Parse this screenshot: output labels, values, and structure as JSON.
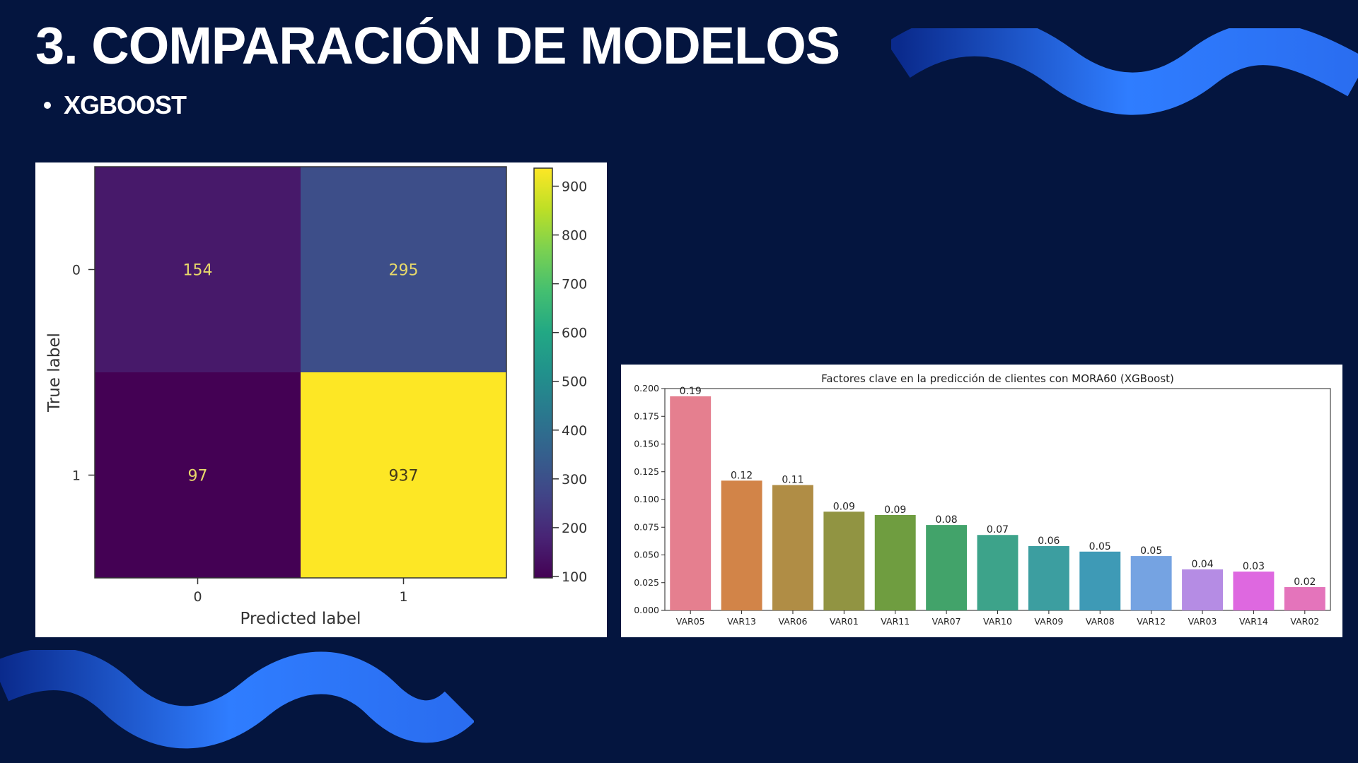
{
  "slide": {
    "title": "3. COMPARACIÓN DE MODELOS",
    "bullet": "XGBOOST"
  },
  "colors": {
    "background": "#04153f",
    "wave_light": "#2f7dff",
    "wave_dark": "#0a2a8c"
  },
  "chart_data": [
    {
      "type": "heatmap",
      "title": "",
      "xlabel": "Predicted label",
      "ylabel": "True label",
      "x_categories": [
        "0",
        "1"
      ],
      "y_categories": [
        "0",
        "1"
      ],
      "values": [
        [
          154,
          295
        ],
        [
          97,
          937
        ]
      ],
      "colormap": "viridis",
      "colorbar": {
        "range": [
          97,
          937
        ],
        "ticks": [
          100,
          200,
          300,
          400,
          500,
          600,
          700,
          800,
          900
        ]
      }
    },
    {
      "type": "bar",
      "title": "Factores clave en la predicción de clientes con MORA60 (XGBoost)",
      "xlabel": "",
      "ylabel": "",
      "categories": [
        "VAR05",
        "VAR13",
        "VAR06",
        "VAR01",
        "VAR11",
        "VAR07",
        "VAR10",
        "VAR09",
        "VAR08",
        "VAR12",
        "VAR03",
        "VAR14",
        "VAR02"
      ],
      "values": [
        0.193,
        0.117,
        0.113,
        0.089,
        0.086,
        0.077,
        0.068,
        0.058,
        0.053,
        0.049,
        0.037,
        0.035,
        0.021
      ],
      "data_labels": [
        "0.19",
        "0.12",
        "0.11",
        "0.09",
        "0.09",
        "0.08",
        "0.07",
        "0.06",
        "0.05",
        "0.05",
        "0.04",
        "0.03",
        "0.02"
      ],
      "ylim": [
        0,
        0.2
      ],
      "yticks": [
        "0.000",
        "0.025",
        "0.050",
        "0.075",
        "0.100",
        "0.125",
        "0.150",
        "0.175",
        "0.200"
      ],
      "bar_colors": [
        "#e57f8f",
        "#d28448",
        "#b08d45",
        "#919442",
        "#6f9d40",
        "#42a36a",
        "#3da38a",
        "#3c9ea0",
        "#3e9ab6",
        "#75a3e2",
        "#b58ce4",
        "#de68e0",
        "#e474bb"
      ],
      "grid": false
    }
  ]
}
